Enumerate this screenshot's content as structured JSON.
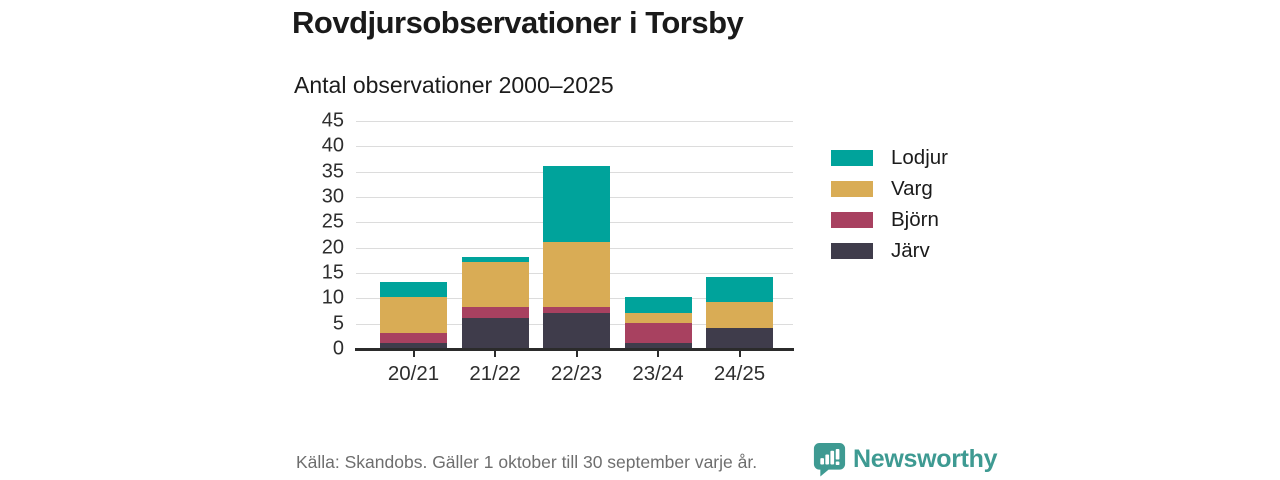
{
  "chart_data": {
    "type": "bar",
    "stacked": true,
    "title": "Rovdjursobservationer i Torsby",
    "subtitle": "Antal observationer 2000–2025",
    "categories": [
      "20/21",
      "21/22",
      "22/23",
      "23/24",
      "24/25"
    ],
    "series": [
      {
        "name": "Järv",
        "color": "#3f3c4b",
        "values": [
          1,
          6,
          7,
          1,
          4
        ]
      },
      {
        "name": "Björn",
        "color": "#a84160",
        "values": [
          2,
          2,
          1,
          4,
          0
        ]
      },
      {
        "name": "Varg",
        "color": "#d9ac55",
        "values": [
          7,
          9,
          13,
          2,
          5
        ]
      },
      {
        "name": "Lodjur",
        "color": "#00a39b",
        "values": [
          3,
          1,
          15,
          3,
          5
        ]
      }
    ],
    "totals": [
      13,
      18,
      36,
      10,
      14
    ],
    "legend_order": [
      "Lodjur",
      "Varg",
      "Björn",
      "Järv"
    ],
    "legend_position": "right",
    "xlabel": "",
    "ylabel": "",
    "ylim": [
      0,
      45
    ],
    "yticks": [
      0,
      5,
      10,
      15,
      20,
      25,
      30,
      35,
      40,
      45
    ],
    "grid": true,
    "grid_color": "#dcdcdc",
    "axis_color": "#2b2b2b"
  },
  "footer": {
    "source": "Källa: Skandobs. Gäller 1 oktober till 30 september varje år.",
    "brand": "Newsworthy",
    "brand_color": "#3e9a92"
  }
}
